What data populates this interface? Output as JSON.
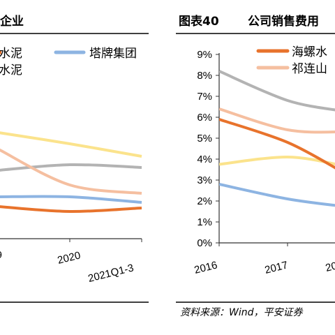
{
  "left_panel": {
    "title": "企业",
    "chart_data": {
      "type": "line",
      "x": [
        "9",
        "2020",
        "2021Q1-3"
      ],
      "series": [
        {
          "name": "水泥",
          "color": "#e8732c",
          "values": [
            null,
            null,
            null
          ]
        },
        {
          "name": "塔牌集团",
          "color": "#8db4e2",
          "values": [
            null,
            null,
            null
          ]
        },
        {
          "name": "水泥",
          "color": "#f5bfa0",
          "values": [
            null,
            null,
            null
          ]
        },
        {
          "name": "",
          "color": "#fbe38c",
          "values": [
            null,
            null,
            null
          ]
        },
        {
          "name": "",
          "color": "#b3b3b3",
          "values": [
            null,
            null,
            null
          ]
        }
      ]
    }
  },
  "right_panel": {
    "figure_label": "图表40",
    "title": "公司销售费用",
    "source": "资料来源：Wind，平安证券",
    "chart_data": {
      "type": "line",
      "x": [
        "2016",
        "2017",
        "20"
      ],
      "yticks": [
        "0%",
        "1%",
        "2%",
        "3%",
        "4%",
        "5%",
        "6%",
        "7%",
        "8%",
        "9%"
      ],
      "ylim": [
        0,
        9
      ],
      "series": [
        {
          "name": "海螺水",
          "color": "#e8732c",
          "values": [
            5.9,
            4.8,
            3.4
          ]
        },
        {
          "name": "祁连山",
          "color": "#f5bfa0",
          "values": [
            6.4,
            5.4,
            5.3
          ]
        },
        {
          "name": "",
          "color": "#b3b3b3",
          "values": [
            8.2,
            6.8,
            6.3
          ]
        },
        {
          "name": "",
          "color": "#fbe38c",
          "values": [
            3.75,
            4.1,
            3.7
          ]
        },
        {
          "name": "",
          "color": "#8db4e2",
          "values": [
            2.8,
            2.1,
            1.75
          ]
        }
      ]
    }
  }
}
